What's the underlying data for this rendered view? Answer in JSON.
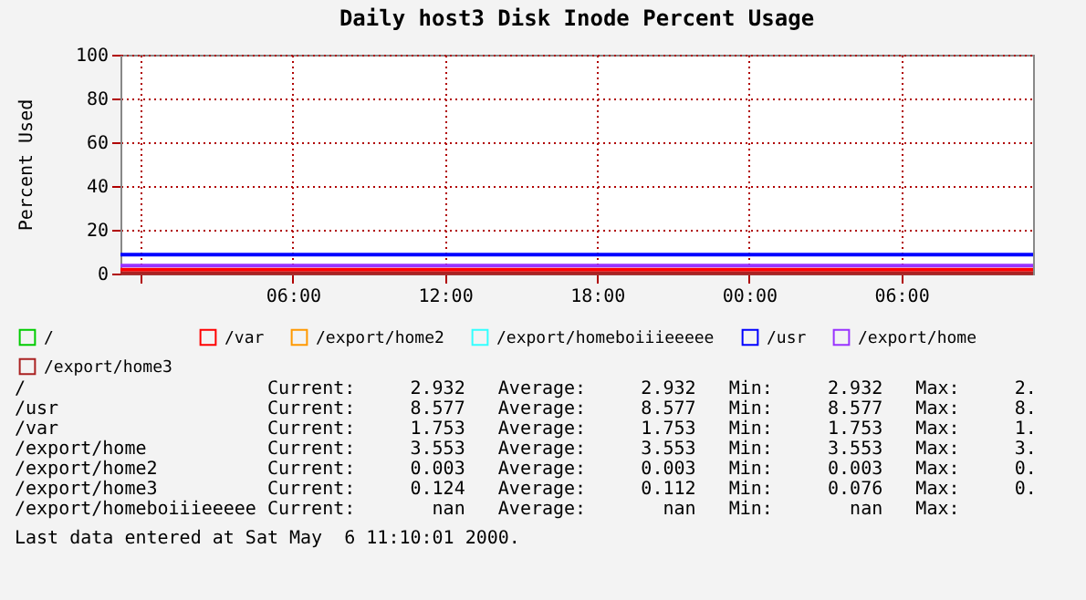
{
  "chart_data": {
    "type": "line",
    "title": "Daily host3 Disk Inode Percent Usage",
    "ylabel": "Percent Used",
    "xlim": [
      "2000-05-04T23:12",
      "2000-05-06T11:12"
    ],
    "xticks": [
      {
        "value": "2000-05-05T00:00",
        "label": null
      },
      {
        "value": "2000-05-05T06:00",
        "label": "06:00"
      },
      {
        "value": "2000-05-05T12:00",
        "label": "12:00"
      },
      {
        "value": "2000-05-05T18:00",
        "label": "18:00"
      },
      {
        "value": "2000-05-06T00:00",
        "label": "00:00"
      },
      {
        "value": "2000-05-06T06:00",
        "label": "06:00"
      }
    ],
    "ylim": [
      0,
      100
    ],
    "yticks": [
      0,
      20,
      40,
      60,
      80,
      100
    ],
    "grid": true,
    "legend": "bottom",
    "marker": "none",
    "line_style": "solid",
    "x": [
      "2000-05-04T23:12",
      "2000-05-06T11:12"
    ],
    "series": [
      {
        "name": "/",
        "color": "#00cc00",
        "values": [
          null,
          null
        ]
      },
      {
        "name": "/usr",
        "color": "#0000ff",
        "values": [
          8.6,
          8.6
        ]
      },
      {
        "name": "/var",
        "color": "#ff0000",
        "values": [
          1.8,
          1.8
        ]
      },
      {
        "name": "/export/home",
        "color": "#9933ff",
        "values": [
          3.6,
          3.6
        ]
      },
      {
        "name": "/export/home2",
        "color": "#ff9900",
        "values": [
          null,
          null
        ]
      },
      {
        "name": "/export/home3",
        "color": "#aa2222",
        "values": [
          0.1,
          0.1
        ]
      },
      {
        "name": "/export/homeboiiieeeee",
        "color": "#33ffff",
        "values": [
          null,
          null
        ]
      }
    ],
    "annotations": [
      "/                      Current:     2.932   Average:     2.932   Min:     2.932   Max:     2.",
      "/usr                   Current:     8.577   Average:     8.577   Min:     8.577   Max:     8.",
      "/var                   Current:     1.753   Average:     1.753   Min:     1.753   Max:     1.",
      "/export/home           Current:     3.553   Average:     3.553   Min:     3.553   Max:     3.",
      "/export/home2          Current:     0.003   Average:     0.003   Min:     0.003   Max:     0.",
      "/export/home3          Current:     0.124   Average:     0.112   Min:     0.076   Max:     0.",
      "/export/homeboiiieeeee Current:       nan   Average:       nan   Min:       nan   Max:",
      "Last data entered at Sat May  6 11:10:01 2000."
    ]
  }
}
